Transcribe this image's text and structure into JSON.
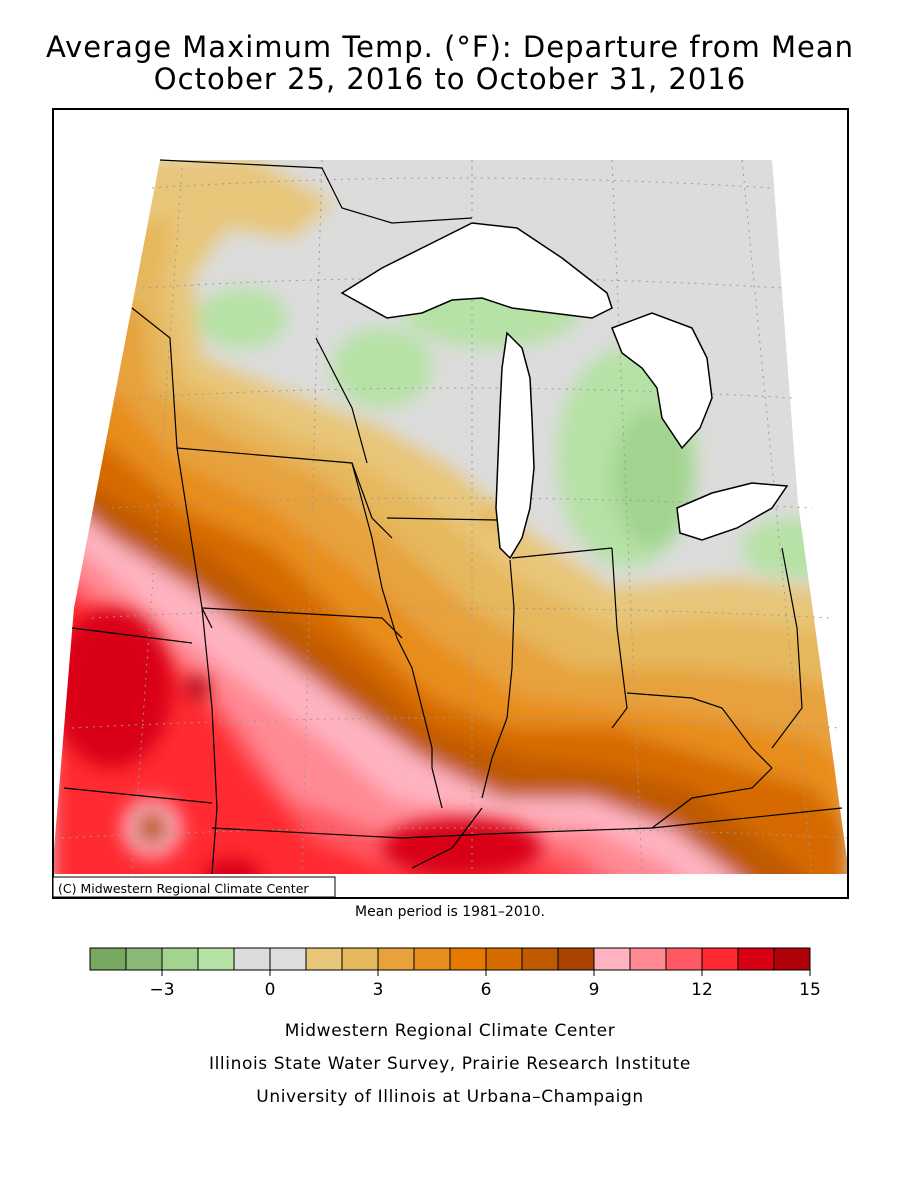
{
  "header": {
    "title_line1": "Average Maximum Temp. (°F): Departure from Mean",
    "title_line2": "October 25, 2016 to October 31, 2016"
  },
  "map": {
    "credit": "(C) Midwestern Regional Climate Center",
    "mean_period": "Mean period is 1981–2010."
  },
  "legend": {
    "bins": [
      {
        "color": "#76a860"
      },
      {
        "color": "#8cb877"
      },
      {
        "color": "#a2d48f"
      },
      {
        "color": "#b6e2a5"
      },
      {
        "color": "#dcdcdc"
      },
      {
        "color": "#dedede"
      },
      {
        "color": "#e8c679"
      },
      {
        "color": "#e6b85d"
      },
      {
        "color": "#e7a23c"
      },
      {
        "color": "#e88d1f"
      },
      {
        "color": "#e67a00"
      },
      {
        "color": "#d66b00"
      },
      {
        "color": "#c05a00"
      },
      {
        "color": "#a84300"
      },
      {
        "color": "#ffb3c0"
      },
      {
        "color": "#ff8a94"
      },
      {
        "color": "#ff5a63"
      },
      {
        "color": "#ff2a30"
      },
      {
        "color": "#d90012"
      },
      {
        "color": "#b00008"
      }
    ],
    "tick_labels": [
      {
        "label": "−3",
        "value": -3
      },
      {
        "label": "0",
        "value": 0
      },
      {
        "label": "3",
        "value": 3
      },
      {
        "label": "6",
        "value": 6
      },
      {
        "label": "9",
        "value": 9
      },
      {
        "label": "12",
        "value": 12
      },
      {
        "label": "15",
        "value": 15
      }
    ],
    "min": -5,
    "max": 15,
    "step": 1
  },
  "footer": {
    "line1": "Midwestern Regional Climate Center",
    "line2": "Illinois State Water Survey, Prairie Research Institute",
    "line3": "University of Illinois at Urbana–Champaign"
  }
}
